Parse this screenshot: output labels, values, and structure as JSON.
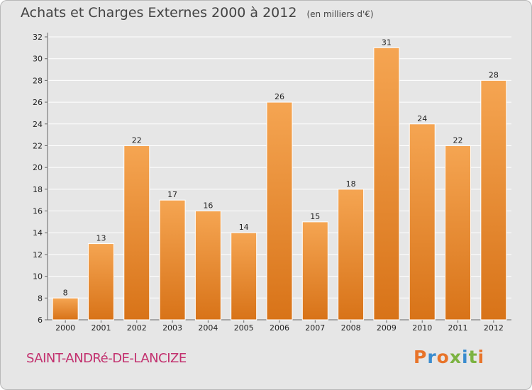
{
  "header": {
    "title": "Achats et Charges Externes 2000 à 2012",
    "subtitle": "(en milliers d'€)"
  },
  "footer": {
    "commune": "SAINT-ANDRé-DE-LANCIZE",
    "brand": "Proxiti"
  },
  "colors": {
    "bar_light": "#f5a552",
    "bar_dark": "#d87318",
    "background": "#e6e6e6",
    "commune_text": "#c2306e",
    "brand_letters": [
      "#e8742a",
      "#3a8ccf",
      "#e8742a",
      "#7cb342",
      "#3a8ccf",
      "#7cb342",
      "#e8742a"
    ]
  },
  "chart_data": {
    "type": "bar",
    "title": "Achats et Charges Externes 2000 à 2012",
    "subtitle": "(en milliers d'€)",
    "categories": [
      "2000",
      "2001",
      "2002",
      "2003",
      "2004",
      "2005",
      "2006",
      "2007",
      "2008",
      "2009",
      "2010",
      "2011",
      "2012"
    ],
    "values": [
      8,
      13,
      22,
      17,
      16,
      14,
      26,
      15,
      18,
      31,
      24,
      22,
      28
    ],
    "ylim": [
      6,
      32
    ],
    "yticks": [
      6,
      8,
      10,
      12,
      14,
      16,
      18,
      20,
      22,
      24,
      26,
      28,
      30,
      32
    ],
    "grid": true,
    "legend": "none",
    "xlabel": "",
    "ylabel": ""
  }
}
